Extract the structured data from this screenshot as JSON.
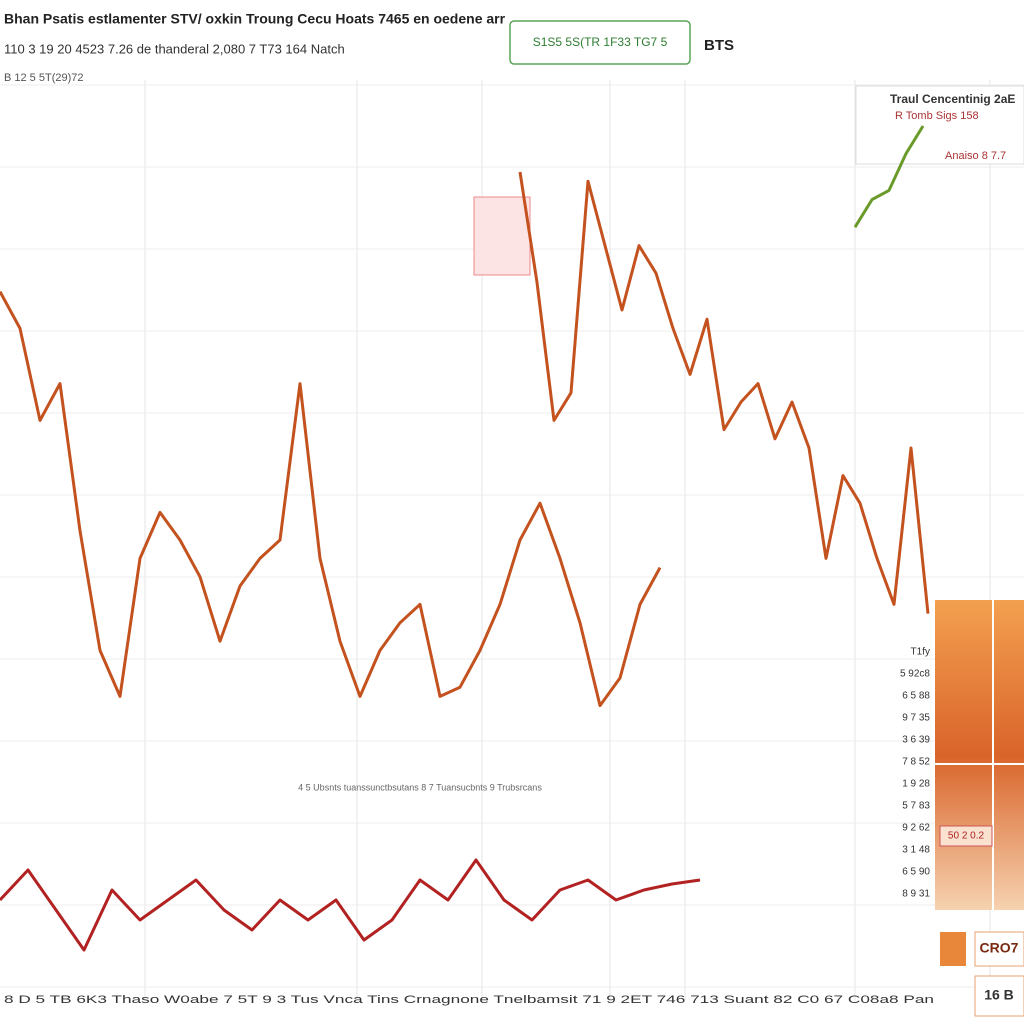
{
  "header": {
    "title": "Bhan Psatis estlamenter STV/ oxkin Troung Cecu Hoats 7465 en oedene arr",
    "subtitle": "110 3 19 20 4523 7.26 de thanderal 2,080 7 T73 164 Natch",
    "line3": "B 12 5 5T(29)72",
    "badge": "S1S5 5S(TR 1F33 TG7 5",
    "symbol": "BTS"
  },
  "panel": {
    "title": "Traul Cencentinig 2aE",
    "lines": [
      "R Tomb Sigs 158",
      "Anaiso 8 7.7"
    ]
  },
  "mid_caption": "4 5 Ubsnts tuanssunctbsutans 8 7 Tuansucbnts 9 Trubsrcans",
  "side_labels": [
    "T1fy",
    "5 92c8",
    "6 5 88",
    "9 7 35",
    "3 6 39",
    "7 8 52",
    "1 9 28",
    "5 7 83",
    "9 2 62",
    "3 1 48",
    "6 5 90",
    "8 9 31"
  ],
  "right_boxes": [
    "50 2 0.2",
    "CRO7",
    "16 B"
  ],
  "footer": "8 D 5 TB 6K3 Thaso W0abe 7 5T 9 3 Tus Vnca Tins Crnagnone Tnelbamsit 71 9 2ET 746 713 Suant 82 C0 67 C08a8 Pan",
  "chart_data": [
    {
      "type": "line",
      "xlim": [
        0,
        1024
      ],
      "ylim": [
        0,
        100
      ],
      "series": [
        {
          "color": "#c4521f",
          "x": [
            0,
            20,
            40,
            60,
            80,
            100,
            120,
            140,
            160,
            180,
            200,
            220,
            240,
            260,
            280,
            300,
            320,
            340,
            360,
            380,
            400,
            420,
            440,
            460,
            480,
            500,
            520,
            540,
            560,
            580,
            600,
            620,
            640,
            660
          ],
          "values": [
            77,
            73,
            63,
            67,
            51,
            38,
            33,
            48,
            53,
            50,
            46,
            39,
            45,
            48,
            50,
            67,
            48,
            39,
            33,
            38,
            41,
            43,
            33,
            34,
            38,
            43,
            50,
            54,
            48,
            41,
            32,
            35,
            43,
            47
          ]
        },
        {
          "color": "#c4521f",
          "x": [
            520,
            537,
            554,
            571,
            588,
            605,
            622,
            639,
            656,
            673,
            690,
            707,
            724,
            741,
            758,
            775,
            792,
            809,
            826,
            843,
            860,
            877,
            894,
            911,
            928
          ],
          "values": [
            90,
            78,
            63,
            66,
            89,
            82,
            75,
            82,
            79,
            73,
            68,
            74,
            62,
            65,
            67,
            61,
            65,
            60,
            48,
            57,
            54,
            48,
            43,
            60,
            42
          ]
        },
        {
          "color": "#6a9a2a",
          "x": [
            855,
            872,
            889,
            906,
            923
          ],
          "values": [
            84,
            87,
            88,
            92,
            95
          ]
        }
      ]
    },
    {
      "type": "line",
      "xlim": [
        0,
        1024
      ],
      "ylim": [
        0,
        100
      ],
      "series": [
        {
          "color": "#b22222",
          "x": [
            0,
            28,
            56,
            84,
            112,
            140,
            168,
            196,
            224,
            252,
            280,
            308,
            336,
            364,
            392,
            420,
            448,
            476,
            504,
            532,
            560,
            588,
            616,
            644,
            672,
            700
          ],
          "values": [
            50,
            65,
            45,
            25,
            55,
            40,
            50,
            60,
            45,
            35,
            50,
            40,
            50,
            30,
            40,
            60,
            50,
            70,
            50,
            40,
            55,
            60,
            50,
            55,
            58,
            60
          ]
        }
      ]
    }
  ]
}
